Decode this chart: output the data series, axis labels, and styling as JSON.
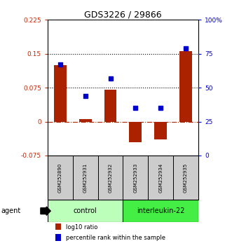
{
  "title": "GDS3226 / 29866",
  "samples": [
    "GSM252890",
    "GSM252931",
    "GSM252932",
    "GSM252933",
    "GSM252934",
    "GSM252935"
  ],
  "log10_ratio": [
    0.125,
    0.005,
    0.07,
    -0.045,
    -0.04,
    0.155
  ],
  "percentile_rank": [
    67,
    44,
    57,
    35,
    35,
    79
  ],
  "ylim_left": [
    -0.075,
    0.225
  ],
  "ylim_right": [
    0,
    100
  ],
  "yticks_left": [
    -0.075,
    0,
    0.075,
    0.15,
    0.225
  ],
  "ytick_labels_left": [
    "-0.075",
    "0",
    "0.075",
    "0.15",
    "0.225"
  ],
  "yticks_right": [
    0,
    25,
    50,
    75,
    100
  ],
  "ytick_labels_right": [
    "0",
    "25",
    "50",
    "75",
    "100%"
  ],
  "hlines": [
    0.075,
    0.15
  ],
  "zero_line": 0,
  "bar_color": "#aa2200",
  "dot_color": "#0000cc",
  "bar_width": 0.5,
  "control_n": 3,
  "interleukin_n": 3,
  "control_color": "#bbffbb",
  "interleukin_color": "#44ee44",
  "agent_label": "agent",
  "legend_bar_label": "log10 ratio",
  "legend_dot_label": "percentile rank within the sample",
  "background_color": "#ffffff",
  "plot_bg_color": "#ffffff",
  "tick_label_color_left": "#cc2200",
  "tick_label_color_right": "#0000cc",
  "sample_bg_color": "#cccccc"
}
